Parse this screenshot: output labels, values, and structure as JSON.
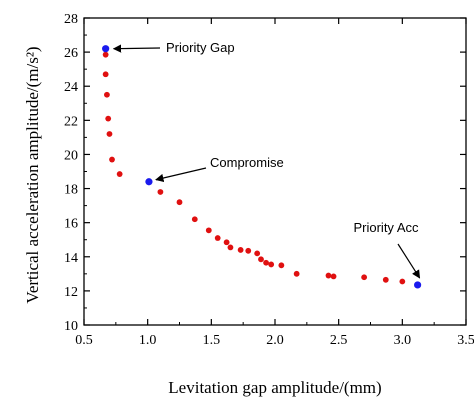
{
  "chart_data": {
    "type": "scatter",
    "xlabel": "Levitation gap amplitude/(mm)",
    "ylabel": "Vertical acceleration amplitude/(m/s²)",
    "xlim": [
      0.5,
      3.5
    ],
    "ylim": [
      10,
      28
    ],
    "x_ticks": [
      "0.5",
      "1.0",
      "1.5",
      "2.0",
      "2.5",
      "3.0",
      "3.5"
    ],
    "y_ticks": [
      "10",
      "12",
      "14",
      "16",
      "18",
      "20",
      "22",
      "24",
      "26",
      "28"
    ],
    "grid": false,
    "colors": {
      "pareto": "#e01010",
      "highlight": "#1a1aee",
      "axis": "#000000"
    },
    "series": [
      {
        "color": "#e01010",
        "points": [
          [
            0.67,
            25.85
          ],
          [
            0.67,
            24.7
          ],
          [
            0.68,
            23.5
          ],
          [
            0.69,
            22.1
          ],
          [
            0.7,
            21.2
          ],
          [
            0.72,
            19.7
          ],
          [
            0.78,
            18.85
          ],
          [
            1.1,
            17.8
          ],
          [
            1.25,
            17.2
          ],
          [
            1.37,
            16.2
          ],
          [
            1.48,
            15.55
          ],
          [
            1.55,
            15.1
          ],
          [
            1.62,
            14.85
          ],
          [
            1.65,
            14.55
          ],
          [
            1.73,
            14.4
          ],
          [
            1.79,
            14.35
          ],
          [
            1.86,
            14.2
          ],
          [
            1.89,
            13.85
          ],
          [
            1.93,
            13.65
          ],
          [
            1.97,
            13.55
          ],
          [
            2.05,
            13.5
          ],
          [
            2.17,
            13.0
          ],
          [
            2.42,
            12.9
          ],
          [
            2.46,
            12.85
          ],
          [
            2.7,
            12.8
          ],
          [
            2.87,
            12.65
          ],
          [
            3.0,
            12.55
          ]
        ]
      },
      {
        "color": "#1a1aee",
        "points": [
          [
            0.67,
            26.2
          ],
          [
            1.01,
            18.4
          ],
          [
            3.12,
            12.35
          ]
        ]
      }
    ],
    "annotations": [
      {
        "text": "Priority Gap",
        "x": 0.67,
        "y": 26.2
      },
      {
        "text": "Compromise",
        "x": 1.01,
        "y": 18.4
      },
      {
        "text": "Priority Acc",
        "x": 3.12,
        "y": 12.35
      }
    ]
  }
}
